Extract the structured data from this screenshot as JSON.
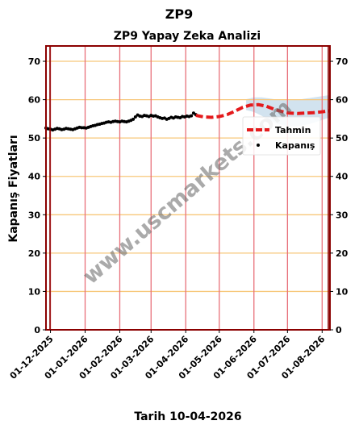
{
  "chart_data": {
    "type": "line",
    "title": "ZP9",
    "subtitle": "ZP9 Yapay Zeka Analizi",
    "ylabel": "Kapanış Fiyatları",
    "date_label": "Tarih 10-04-2026",
    "watermark": "www.uscmarkets.com",
    "ylim": [
      0,
      74
    ],
    "y_ticks": [
      0,
      10,
      20,
      30,
      40,
      50,
      60,
      70
    ],
    "x_range": [
      "2025-11-27",
      "2026-08-08"
    ],
    "x_ticks": [
      {
        "date": "2025-12-01",
        "label": "01-12-2025"
      },
      {
        "date": "2026-01-01",
        "label": "01-01-2026"
      },
      {
        "date": "2026-02-01",
        "label": "01-02-2026"
      },
      {
        "date": "2026-03-01",
        "label": "01-03-2026"
      },
      {
        "date": "2026-04-01",
        "label": "01-04-2026"
      },
      {
        "date": "2026-05-01",
        "label": "01-05-2026"
      },
      {
        "date": "2026-06-01",
        "label": "01-06-2026"
      },
      {
        "date": "2026-07-01",
        "label": "01-07-2026"
      },
      {
        "date": "2026-08-01",
        "label": "01-08-2026"
      }
    ],
    "grid": true,
    "legend_position": "right",
    "colors": {
      "forecast": "#e41a1c",
      "close": "#000000",
      "band": "#a6c8e0",
      "vgrid": "#e8707a",
      "hgrid": "#f7c77a",
      "frame": "#8b0000"
    },
    "series": [
      {
        "name": "Kapanış",
        "type": "scatter",
        "points": [
          [
            "2025-11-27",
            52.6
          ],
          [
            "2025-11-29",
            52.4
          ],
          [
            "2025-12-01",
            52.3
          ],
          [
            "2025-12-03",
            52.1
          ],
          [
            "2025-12-05",
            52.3
          ],
          [
            "2025-12-07",
            52.5
          ],
          [
            "2025-12-09",
            52.4
          ],
          [
            "2025-12-11",
            52.2
          ],
          [
            "2025-12-13",
            52.3
          ],
          [
            "2025-12-15",
            52.5
          ],
          [
            "2025-12-17",
            52.4
          ],
          [
            "2025-12-19",
            52.3
          ],
          [
            "2025-12-21",
            52.2
          ],
          [
            "2025-12-23",
            52.4
          ],
          [
            "2025-12-25",
            52.6
          ],
          [
            "2025-12-27",
            52.8
          ],
          [
            "2025-12-29",
            52.7
          ],
          [
            "2025-12-31",
            52.7
          ],
          [
            "2026-01-02",
            52.6
          ],
          [
            "2026-01-04",
            52.8
          ],
          [
            "2026-01-06",
            53.0
          ],
          [
            "2026-01-08",
            53.2
          ],
          [
            "2026-01-10",
            53.3
          ],
          [
            "2026-01-12",
            53.5
          ],
          [
            "2026-01-14",
            53.6
          ],
          [
            "2026-01-16",
            53.8
          ],
          [
            "2026-01-18",
            53.9
          ],
          [
            "2026-01-20",
            54.1
          ],
          [
            "2026-01-22",
            54.2
          ],
          [
            "2026-01-24",
            54.1
          ],
          [
            "2026-01-26",
            54.3
          ],
          [
            "2026-01-28",
            54.4
          ],
          [
            "2026-01-30",
            54.3
          ],
          [
            "2026-02-01",
            54.2
          ],
          [
            "2026-02-03",
            54.4
          ],
          [
            "2026-02-05",
            54.3
          ],
          [
            "2026-02-07",
            54.2
          ],
          [
            "2026-02-09",
            54.4
          ],
          [
            "2026-02-11",
            54.6
          ],
          [
            "2026-02-13",
            54.9
          ],
          [
            "2026-02-15",
            55.5
          ],
          [
            "2026-02-17",
            56.0
          ],
          [
            "2026-02-19",
            55.7
          ],
          [
            "2026-02-21",
            55.6
          ],
          [
            "2026-02-23",
            55.9
          ],
          [
            "2026-02-25",
            55.8
          ],
          [
            "2026-02-27",
            55.6
          ],
          [
            "2026-03-01",
            55.9
          ],
          [
            "2026-03-03",
            55.7
          ],
          [
            "2026-03-05",
            55.8
          ],
          [
            "2026-03-07",
            55.5
          ],
          [
            "2026-03-09",
            55.3
          ],
          [
            "2026-03-11",
            55.1
          ],
          [
            "2026-03-13",
            55.2
          ],
          [
            "2026-03-15",
            54.9
          ],
          [
            "2026-03-17",
            55.1
          ],
          [
            "2026-03-19",
            55.4
          ],
          [
            "2026-03-21",
            55.2
          ],
          [
            "2026-03-23",
            55.5
          ],
          [
            "2026-03-25",
            55.4
          ],
          [
            "2026-03-27",
            55.3
          ],
          [
            "2026-03-29",
            55.6
          ],
          [
            "2026-03-31",
            55.5
          ],
          [
            "2026-04-02",
            55.7
          ],
          [
            "2026-04-04",
            55.6
          ],
          [
            "2026-04-06",
            55.8
          ],
          [
            "2026-04-08",
            56.5
          ],
          [
            "2026-04-10",
            56.1
          ]
        ]
      },
      {
        "name": "Tahmin",
        "type": "line",
        "points": [
          [
            "2026-04-10",
            55.9
          ],
          [
            "2026-04-17",
            55.5
          ],
          [
            "2026-04-24",
            55.4
          ],
          [
            "2026-05-01",
            55.6
          ],
          [
            "2026-05-08",
            56.1
          ],
          [
            "2026-05-15",
            57.0
          ],
          [
            "2026-05-22",
            58.0
          ],
          [
            "2026-05-29",
            58.6
          ],
          [
            "2026-06-05",
            58.7
          ],
          [
            "2026-06-12",
            58.3
          ],
          [
            "2026-06-19",
            57.5
          ],
          [
            "2026-06-26",
            56.9
          ],
          [
            "2026-07-03",
            56.5
          ],
          [
            "2026-07-10",
            56.4
          ],
          [
            "2026-07-17",
            56.5
          ],
          [
            "2026-07-24",
            56.6
          ],
          [
            "2026-07-31",
            56.8
          ],
          [
            "2026-08-08",
            57.1
          ]
        ]
      }
    ],
    "band": [
      [
        "2026-05-25",
        57.3,
        60.1
      ],
      [
        "2026-06-01",
        56.8,
        60.6
      ],
      [
        "2026-06-08",
        55.8,
        60.6
      ],
      [
        "2026-06-15",
        54.6,
        60.3
      ],
      [
        "2026-06-22",
        53.7,
        60.0
      ],
      [
        "2026-06-29",
        53.2,
        59.9
      ],
      [
        "2026-07-06",
        53.0,
        59.9
      ],
      [
        "2026-07-13",
        53.2,
        60.1
      ],
      [
        "2026-07-20",
        53.6,
        60.4
      ],
      [
        "2026-07-27",
        54.2,
        60.7
      ],
      [
        "2026-08-03",
        54.9,
        61.0
      ],
      [
        "2026-08-08",
        55.4,
        61.2
      ]
    ]
  }
}
